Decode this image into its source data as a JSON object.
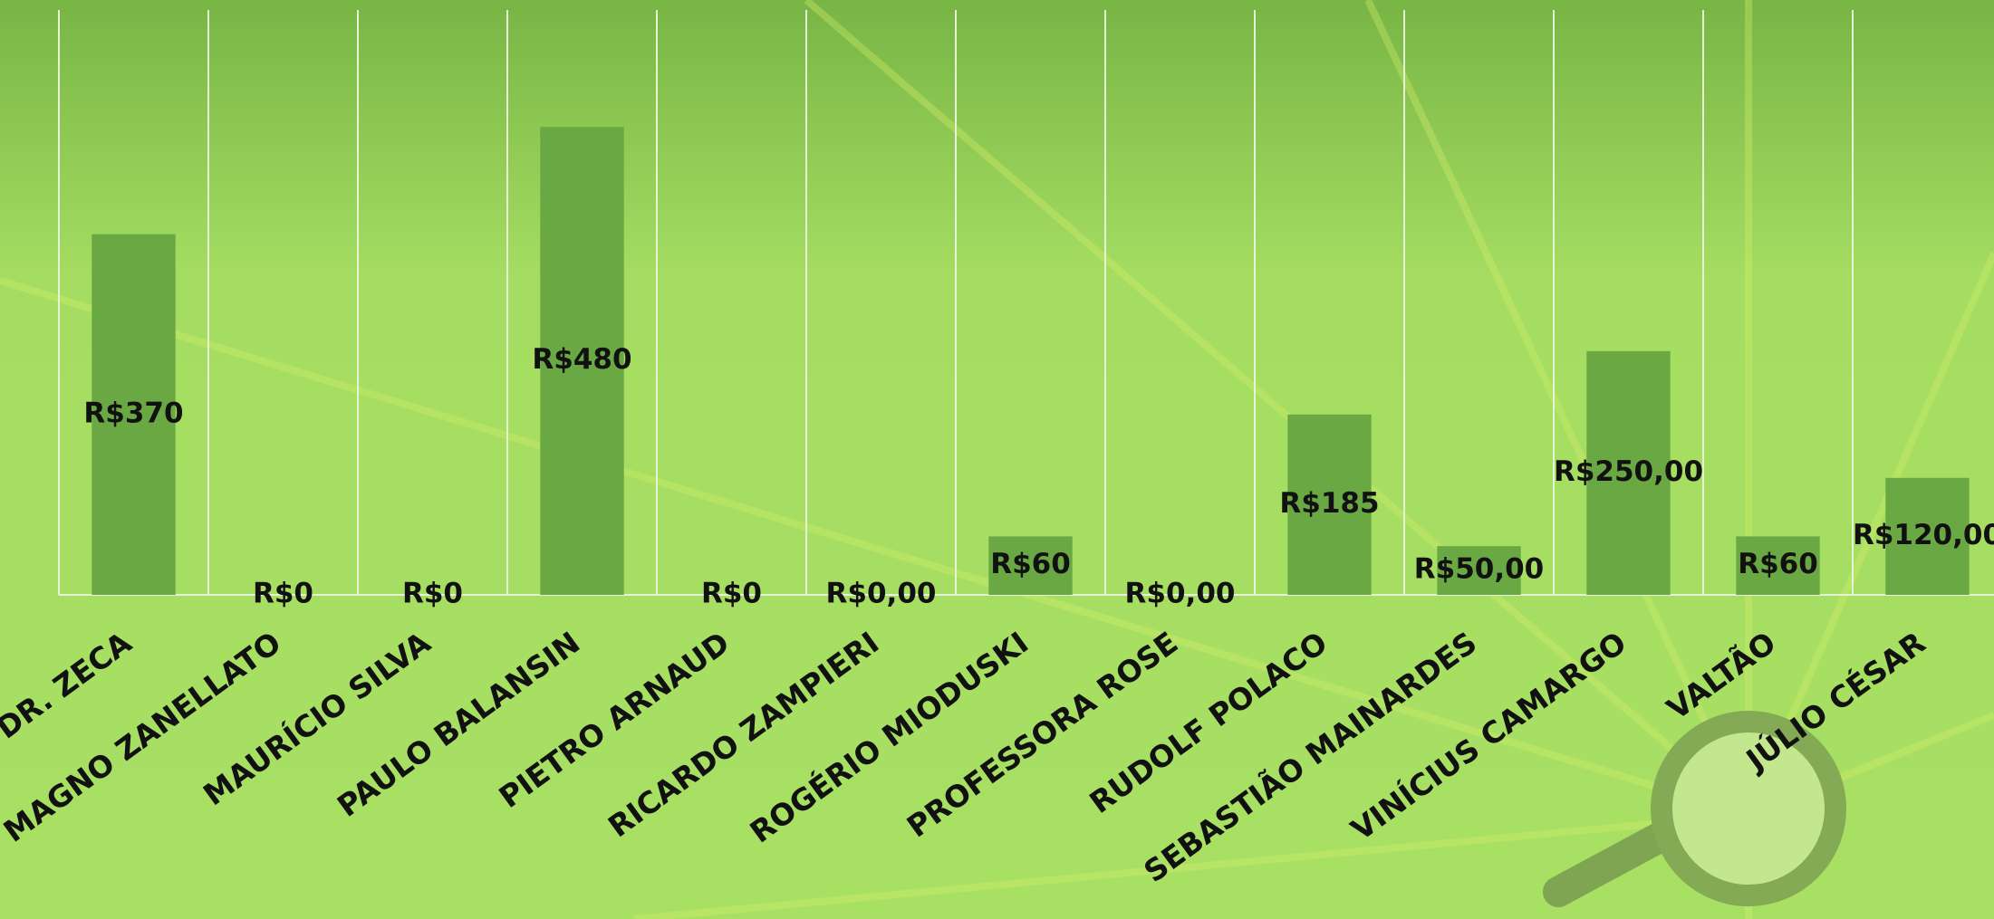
{
  "chart_data": {
    "type": "bar",
    "categories": [
      "DR. ZECA",
      "MAGNO ZANELLATO",
      "MAURÍCIO SILVA",
      "PAULO BALANSIN",
      "PIETRO ARNAUD",
      "RICARDO ZAMPIERI",
      "ROGÉRIO MIODUSKI",
      "PROFESSORA ROSE",
      "RUDOLF POLACO",
      "SEBASTIÃO MAINARDES",
      "VINÍCIUS CAMARGO",
      "VALTÃO",
      "JÚLIO CÉSAR"
    ],
    "values": [
      370,
      0,
      0,
      480,
      0,
      0,
      60,
      0,
      185,
      50,
      250,
      60,
      120
    ],
    "value_labels": [
      "R$370",
      "R$0",
      "R$0",
      "R$480",
      "R$0",
      "R$0,00",
      "R$60",
      "R$0,00",
      "R$185",
      "R$50,00",
      "R$250,00",
      "R$60",
      "R$120,00"
    ],
    "color": "#6aa844",
    "ylim": [
      0,
      600
    ]
  }
}
